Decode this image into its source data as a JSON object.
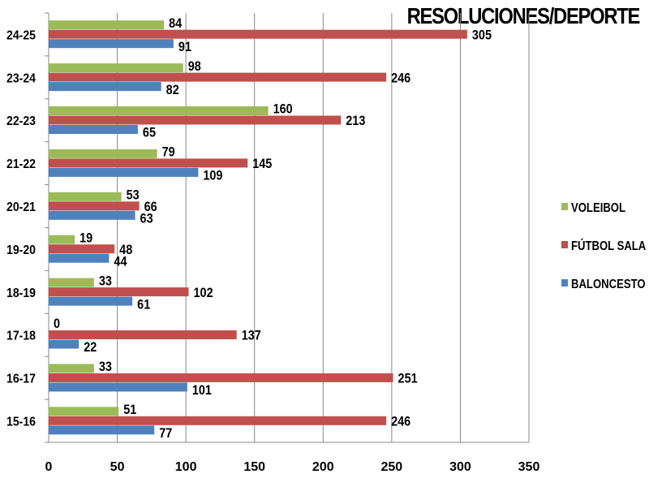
{
  "chart_data": {
    "type": "bar",
    "orientation": "horizontal",
    "title": "RESOLUCIONES/DEPORTE",
    "categories": [
      "15-16",
      "16-17",
      "17-18",
      "18-19",
      "19-20",
      "20-21",
      "21-22",
      "22-23",
      "23-24",
      "24-25"
    ],
    "series": [
      {
        "name": "VOLEIBOL",
        "color": "#9bbb59",
        "values": [
          51,
          33,
          0,
          33,
          19,
          53,
          79,
          160,
          98,
          84
        ]
      },
      {
        "name": "FÚTBOL SALA",
        "color": "#c0504d",
        "values": [
          246,
          251,
          137,
          102,
          48,
          66,
          145,
          213,
          246,
          305
        ]
      },
      {
        "name": "BALONCESTO",
        "color": "#4f81bd",
        "values": [
          77,
          101,
          22,
          61,
          44,
          63,
          109,
          65,
          82,
          91
        ]
      }
    ],
    "xlim": [
      0,
      350
    ],
    "xticks": [
      0,
      50,
      100,
      150,
      200,
      250,
      300,
      350
    ],
    "grid": true,
    "legend_position": "right",
    "data_labels": true
  }
}
